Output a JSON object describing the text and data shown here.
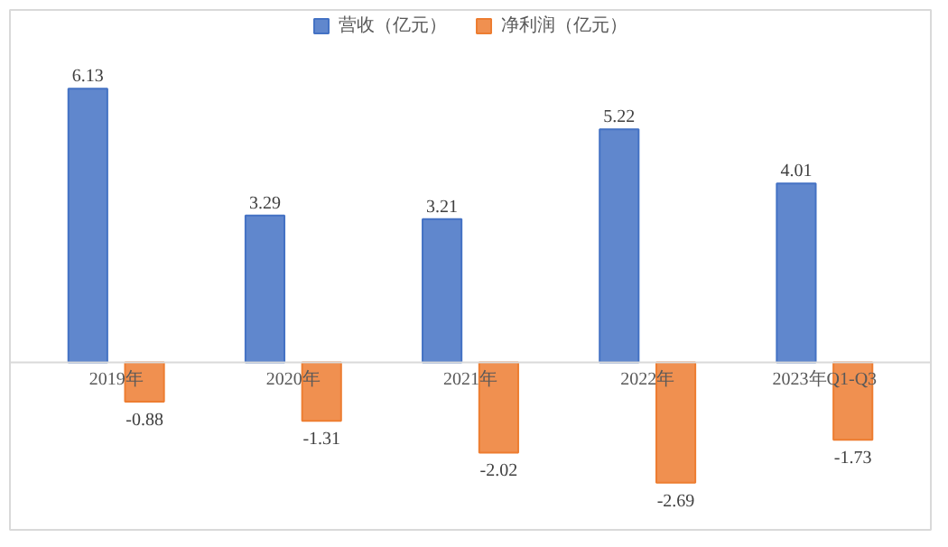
{
  "chart_data": {
    "type": "bar",
    "categories": [
      "2019年",
      "2020年",
      "2021年",
      "2022年",
      "2023年Q1-Q3"
    ],
    "series": [
      {
        "name": "营收（亿元）",
        "color": "#4472c4",
        "values": [
          6.13,
          3.29,
          3.21,
          5.22,
          4.01
        ]
      },
      {
        "name": "净利润（亿元）",
        "color": "#ed7d31",
        "values": [
          -0.88,
          -1.31,
          -2.02,
          -2.69,
          -1.73
        ]
      }
    ],
    "data_labels": true,
    "legend": "top"
  }
}
